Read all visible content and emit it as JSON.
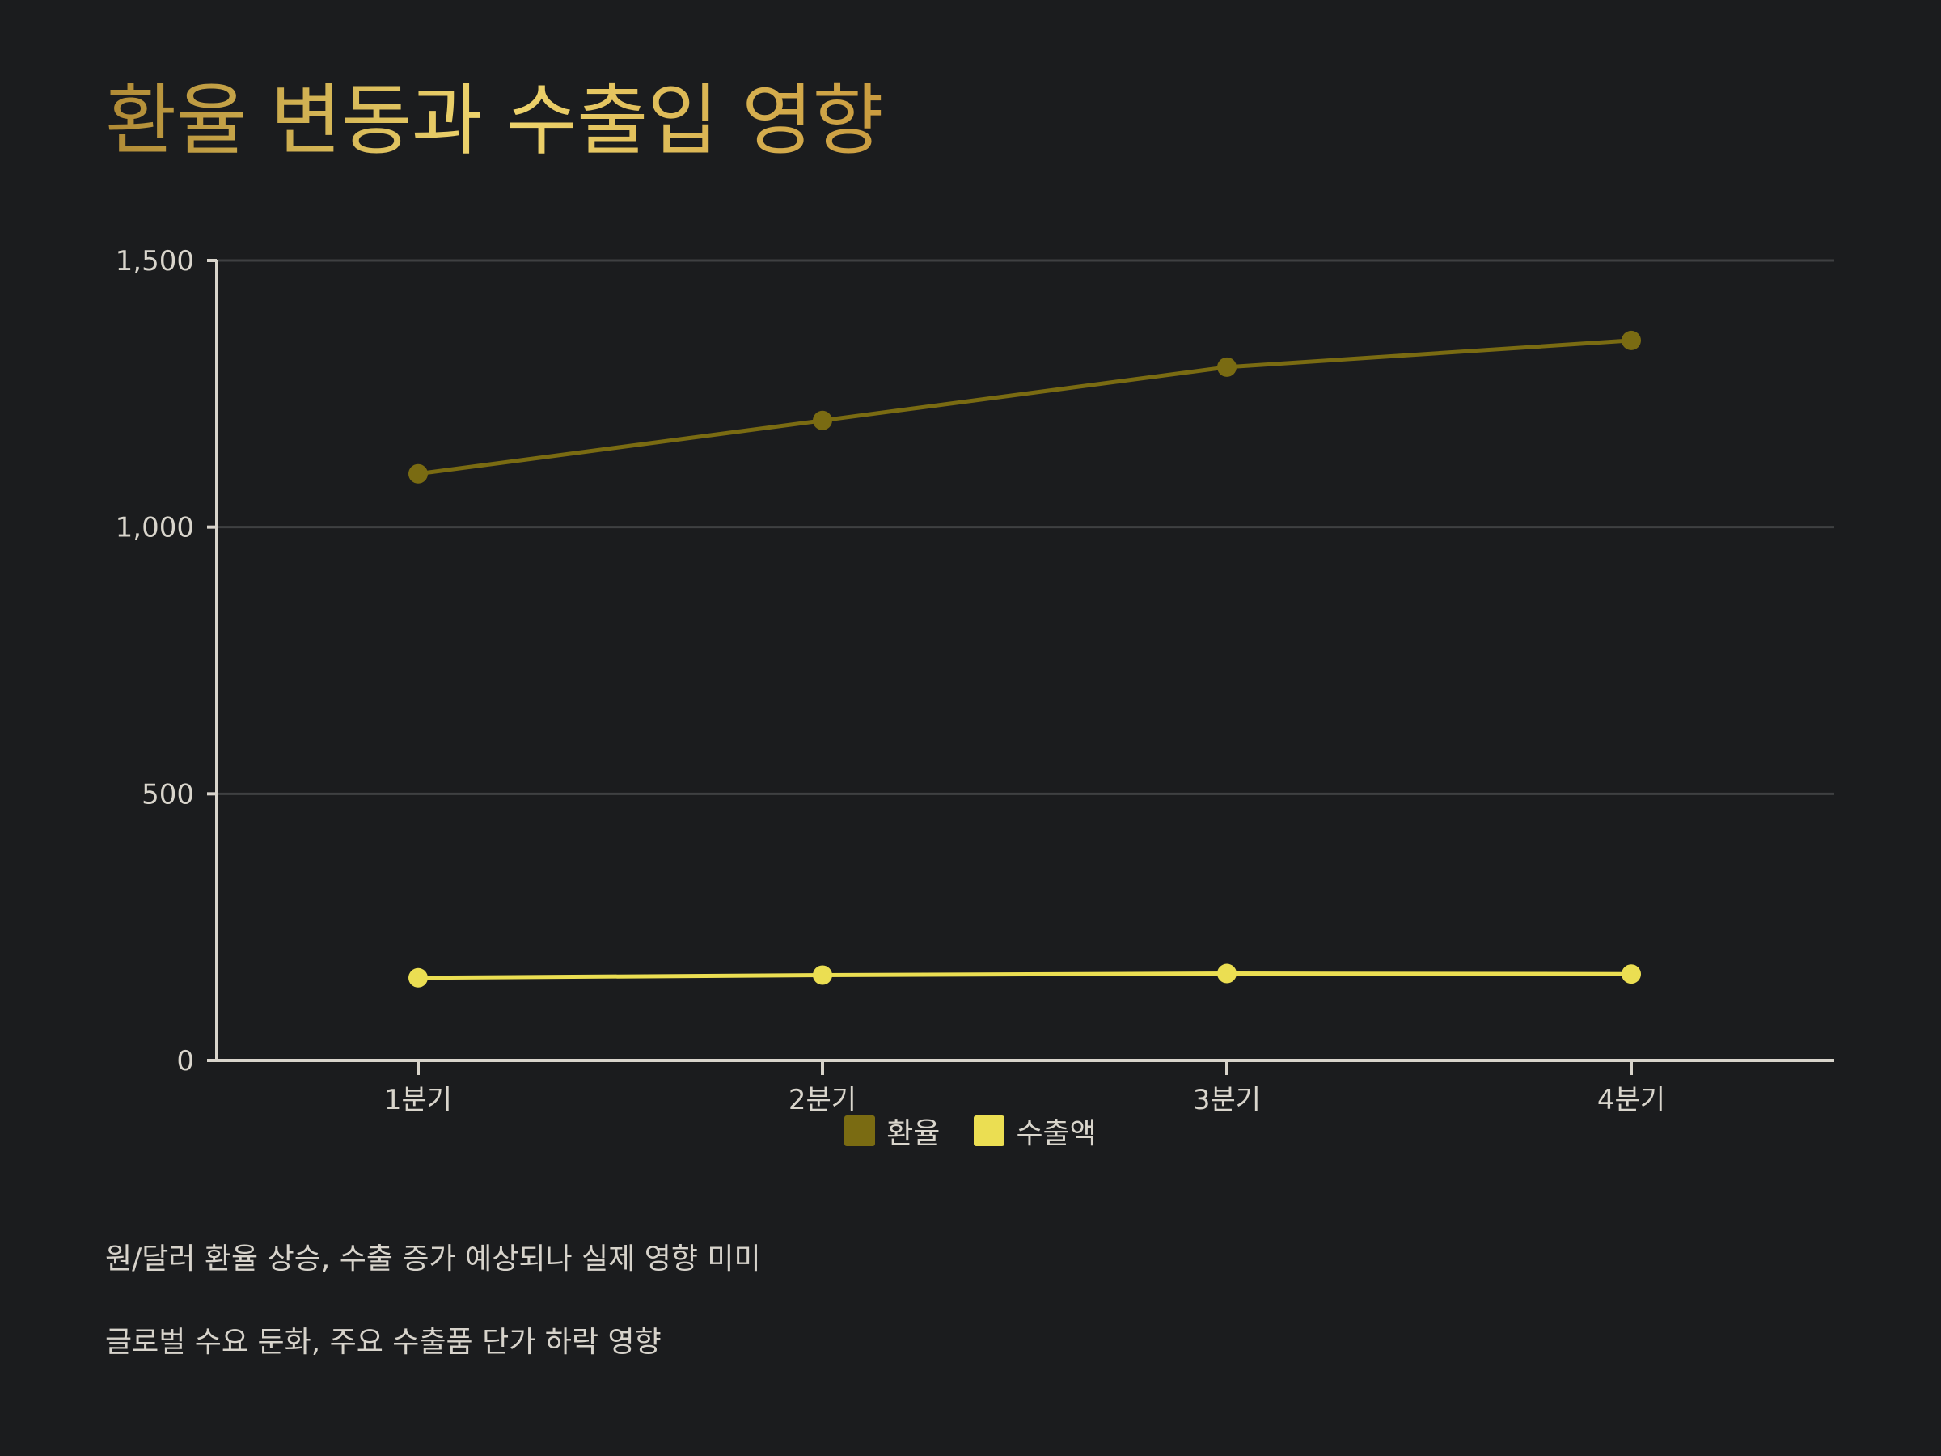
{
  "title": "환율 변동과 수출입 영향",
  "chart_data": {
    "type": "line",
    "title": "환율 변동과 수출입 영향",
    "categories": [
      "1분기",
      "2분기",
      "3분기",
      "4분기"
    ],
    "series": [
      {
        "name": "환율",
        "values": [
          1100,
          1200,
          1300,
          1350
        ],
        "color": "#7a6b12"
      },
      {
        "name": "수출액",
        "values": [
          155,
          160,
          163,
          162
        ],
        "color": "#ebde52"
      }
    ],
    "y_ticks": [
      "0",
      "500",
      "1,000",
      "1,500"
    ],
    "ylim": [
      0,
      1500
    ],
    "xlabel": "",
    "ylabel": "",
    "grid": true,
    "legend": "bottom-center"
  },
  "notes": [
    "원/달러 환율 상승, 수출 증가 예상되나 실제 영향 미미",
    "글로벌 수요 둔화, 주요 수출품 단가 하락 영향"
  ],
  "colors": {
    "background": "#1b1c1e",
    "axis": "#d8d4cb",
    "grid": "#3f4042",
    "text": "#d9d5cc"
  }
}
